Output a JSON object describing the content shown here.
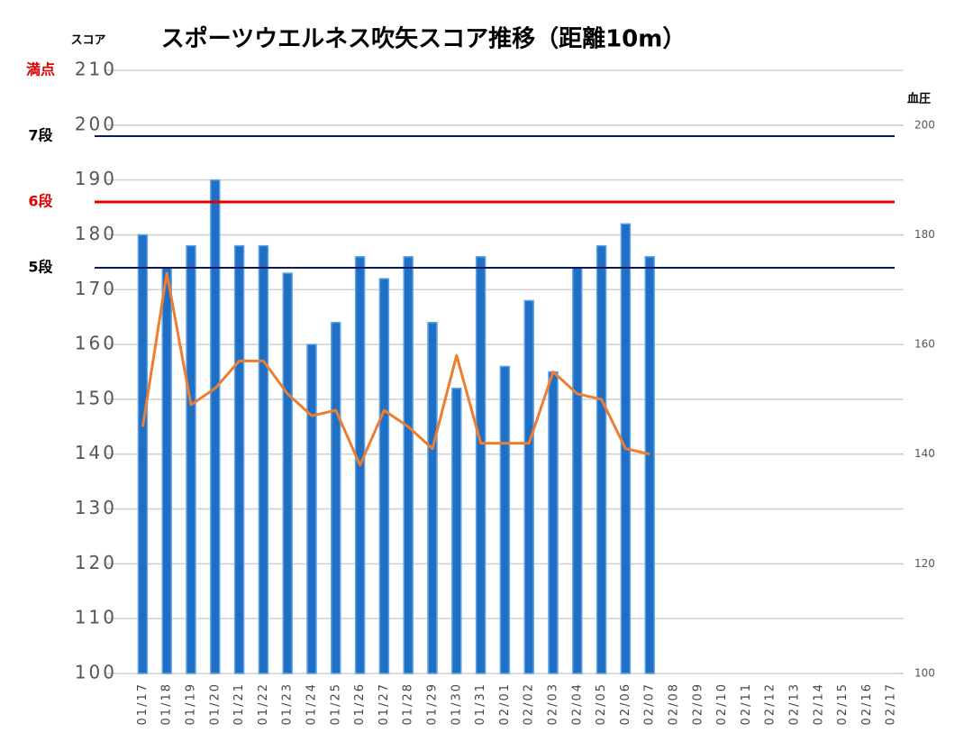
{
  "chart_data": {
    "type": "bar_line",
    "title": "スポーツウエルネス吹矢スコア推移（距離10m）",
    "y_label": "スコア",
    "y2_label": "血圧",
    "categories": [
      "01/17",
      "01/18",
      "01/19",
      "01/20",
      "01/21",
      "01/22",
      "01/23",
      "01/24",
      "01/25",
      "01/26",
      "01/27",
      "01/28",
      "01/29",
      "01/30",
      "01/31",
      "02/01",
      "02/02",
      "02/03",
      "02/04",
      "02/05",
      "02/06",
      "02/07",
      "02/08",
      "02/09",
      "02/10",
      "02/11",
      "02/12",
      "02/13",
      "02/14",
      "02/15",
      "02/16",
      "02/17"
    ],
    "series": [
      {
        "name": "スコア",
        "kind": "bar",
        "color": "#1f6fc4",
        "values": [
          180,
          174,
          178,
          190,
          178,
          178,
          173,
          160,
          164,
          176,
          172,
          176,
          164,
          152,
          176,
          156,
          168,
          155,
          174,
          178,
          182,
          176,
          null,
          null,
          null,
          null,
          null,
          null,
          null,
          null,
          null,
          null
        ]
      },
      {
        "name": "血圧",
        "kind": "line",
        "axis": "y2",
        "color": "#ed7d31",
        "values": [
          145,
          173,
          149,
          152,
          157,
          157,
          151,
          147,
          148,
          138,
          148,
          145,
          141,
          158,
          142,
          142,
          142,
          155,
          151,
          150,
          141,
          140,
          null,
          null,
          null,
          null,
          null,
          null,
          null,
          null,
          null,
          null
        ]
      }
    ],
    "ylim": [
      100,
      210
    ],
    "yticks": [
      100,
      110,
      120,
      130,
      140,
      150,
      160,
      170,
      180,
      190,
      200,
      210
    ],
    "y2lim": [
      100,
      210
    ],
    "y2ticks": [
      100,
      120,
      140,
      160,
      180,
      200
    ],
    "grid": true,
    "reference_lines": [
      {
        "label": "満点",
        "value": 210,
        "color": "#e00000",
        "line": false
      },
      {
        "label": "7段",
        "value": 198,
        "color": "#0b1a5c",
        "line": true
      },
      {
        "label": "6段",
        "value": 186,
        "color": "#e00000",
        "line": true
      },
      {
        "label": "5段",
        "value": 174,
        "color": "#0b1a5c",
        "line": true
      }
    ]
  }
}
